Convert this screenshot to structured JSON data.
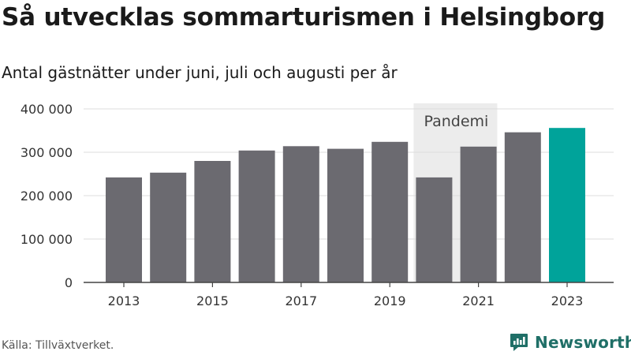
{
  "title": "Så utvecklas sommarturismen i Helsingborg",
  "subtitle": "Antal gästnätter under juni, juli och augusti per år",
  "source": "Källa: Tillväxtverket.",
  "brand": {
    "name": "Newsworthy",
    "icon": "newsworthy-logo-icon",
    "color": "#1f6f67"
  },
  "chart_data": {
    "type": "bar",
    "categories": [
      "2013",
      "2014",
      "2015",
      "2016",
      "2017",
      "2018",
      "2019",
      "2020",
      "2021",
      "2022",
      "2023"
    ],
    "values": [
      242000,
      253000,
      280000,
      304000,
      314000,
      308000,
      324000,
      242000,
      313000,
      346000,
      356000
    ],
    "x_tick_labels": [
      "2013",
      "2015",
      "2017",
      "2019",
      "2021",
      "2023"
    ],
    "y_ticks": [
      0,
      100000,
      200000,
      300000,
      400000
    ],
    "y_tick_labels": [
      "0",
      "100 000",
      "200 000",
      "300 000",
      "400 000"
    ],
    "ylim": [
      0,
      400000
    ],
    "grid": true,
    "bar_color": "#6b6a70",
    "highlight_color": "#00a39a",
    "highlight_category": "2023",
    "annotation": {
      "label": "Pandemi",
      "category": "2020",
      "color": "#ececec"
    }
  }
}
